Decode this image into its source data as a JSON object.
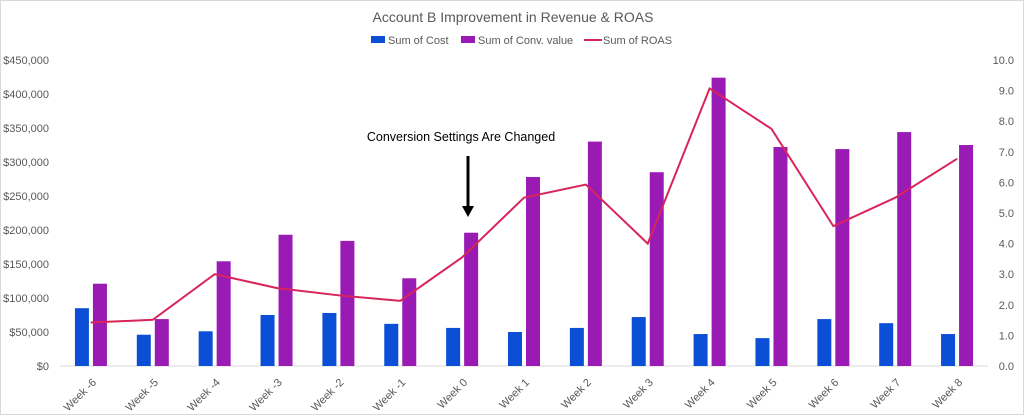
{
  "chart_data": {
    "type": "bar+line",
    "title": "Account B Improvement in Revenue & ROAS",
    "annotation": "Conversion Settings Are Changed",
    "annotation_category": "Week 0",
    "categories": [
      "Week -6",
      "Week -5",
      "Week -4",
      "Week -3",
      "Week -2",
      "Week -1",
      "Week 0",
      "Week 1",
      "Week 2",
      "Week 3",
      "Week 4",
      "Week 5",
      "Week 6",
      "Week 7",
      "Week 8"
    ],
    "series": [
      {
        "name": "Sum of Cost",
        "type": "bar",
        "axis": "left",
        "color": "#0b4fd6",
        "values": [
          85000,
          46000,
          51000,
          75000,
          78000,
          62000,
          56000,
          50000,
          56000,
          72000,
          47000,
          41000,
          69000,
          63000,
          47000
        ]
      },
      {
        "name": "Sum of Conv. value",
        "type": "bar",
        "axis": "left",
        "color": "#9a1ab4",
        "values": [
          121000,
          69000,
          154000,
          193000,
          184000,
          129000,
          196000,
          278000,
          330000,
          285000,
          424000,
          322000,
          319000,
          344000,
          325000
        ]
      },
      {
        "name": "Sum of ROAS",
        "type": "line",
        "axis": "right",
        "color": "#d9245a",
        "values": [
          1.42,
          1.51,
          3.0,
          2.55,
          2.31,
          2.13,
          3.55,
          5.5,
          5.93,
          4.0,
          9.07,
          7.75,
          4.57,
          5.5,
          6.77
        ]
      }
    ],
    "y_left": {
      "range": [
        0,
        450000
      ],
      "ticks": [
        "$0",
        "$50,000",
        "$100,000",
        "$150,000",
        "$200,000",
        "$250,000",
        "$300,000",
        "$350,000",
        "$400,000",
        "$450,000"
      ]
    },
    "y_right": {
      "range": [
        0,
        10
      ],
      "ticks": [
        "0.0",
        "1.0",
        "2.0",
        "3.0",
        "4.0",
        "5.0",
        "6.0",
        "7.0",
        "8.0",
        "9.0",
        "10.0"
      ]
    },
    "legend": "top",
    "grid": false
  }
}
